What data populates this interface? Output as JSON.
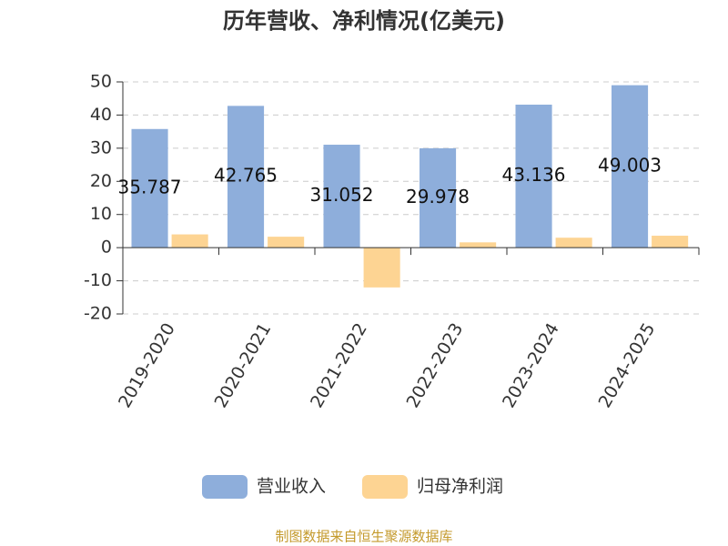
{
  "chart_data": {
    "type": "bar",
    "title": "历年营收、净利情况(亿美元)",
    "categories": [
      "2019-2020",
      "2020-2021",
      "2021-2022",
      "2022-2023",
      "2023-2024",
      "2024-2025"
    ],
    "series": [
      {
        "name": "营业收入",
        "color": "#8eaedb",
        "values": [
          35.787,
          42.765,
          31.052,
          29.978,
          43.136,
          49.003
        ]
      },
      {
        "name": "归母净利润",
        "color": "#fdd493",
        "values": [
          4.0,
          3.3,
          -12.0,
          1.6,
          3.0,
          3.6
        ]
      }
    ],
    "ylim": [
      -20,
      50
    ],
    "yticks": [
      -20,
      -10,
      0,
      10,
      20,
      30,
      40,
      50
    ],
    "grid": true,
    "source": "制图数据来自恒生聚源数据库"
  }
}
